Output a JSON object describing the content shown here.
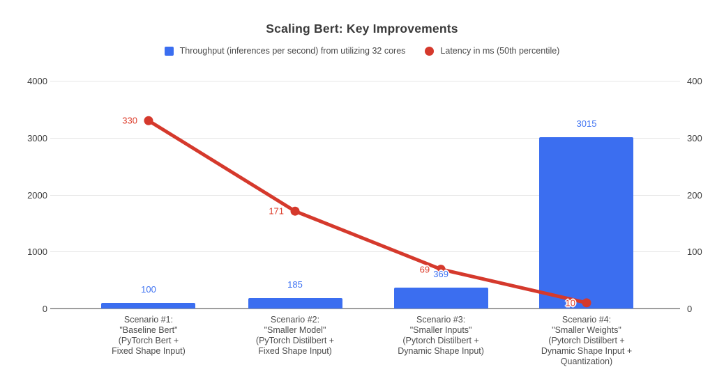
{
  "title": "Scaling Bert: Key Improvements",
  "legend": {
    "throughput_label": "Throughput (inferences per second) from utilizing 32 cores",
    "latency_label": "Latency in ms (50th percentile)"
  },
  "colors": {
    "bar_blue": "#3b6ef0",
    "blue_label": "#3e72f2",
    "line_red": "#d5392c",
    "red_label": "#dd3d2b",
    "gridline": "#e6e6e6",
    "baseline": "#9e9e9e",
    "title_text": "#3a3a3a",
    "axis_text": "#3d3d3d",
    "legend_text": "#4a4a4a",
    "category_text": "#4c4c4c"
  },
  "chart_data": {
    "type": "bar",
    "subtype": "combo bar + line with dual y-axes",
    "title": "Scaling Bert: Key Improvements",
    "legend_position": "top",
    "grid": true,
    "categories": [
      "Scenario #1:\n\"Baseline Bert\"\n(PyTorch Bert +\nFixed Shape Input)",
      "Scenario #2:\n\"Smaller Model\"\n(PyTorch Distilbert +\nFixed Shape Input)",
      "Scenario #3:\n\"Smaller Inputs\"\n(Pytorch Distilbert +\nDynamic Shape Input)",
      "Scenario #4:\n\"Smaller Weights\"\n(Pytorch Distilbert +\nDynamic Shape Input +\nQuantization)"
    ],
    "series": [
      {
        "name": "Throughput (inferences per second) from utilizing 32 cores",
        "chart": "bar",
        "axis": "left",
        "color": "#3b6ef0",
        "values": [
          100,
          185,
          369,
          3015
        ]
      },
      {
        "name": "Latency in ms (50th percentile)",
        "chart": "line",
        "axis": "right",
        "color": "#d5392c",
        "values": [
          330,
          171,
          69,
          10
        ]
      }
    ],
    "left_axis": {
      "range": [
        0,
        4000
      ],
      "ticks": [
        "4000",
        "3000",
        "2000",
        "1000",
        "0"
      ]
    },
    "right_axis": {
      "range": [
        0,
        400
      ],
      "ticks": [
        "400",
        "300",
        "200",
        "100",
        "0"
      ]
    }
  }
}
